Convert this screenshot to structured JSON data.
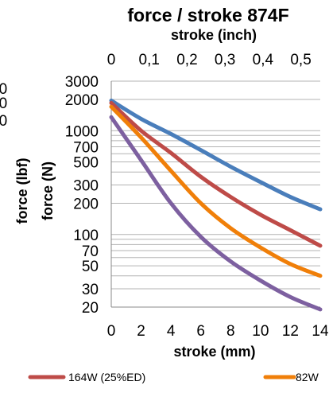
{
  "chart_data": {
    "type": "line",
    "title": "force / stroke 874F",
    "x_top_label": "stroke (inch)",
    "xlabel": "stroke (mm)",
    "ylabel_outer": "force (lbf)",
    "ylabel_inner": "force (N)",
    "x_ticks": [
      "0",
      "2",
      "4",
      "6",
      "8",
      "10",
      "12",
      "14"
    ],
    "x_top_ticks": [
      "0",
      "0,1",
      "0,2",
      "0,3",
      "0,4",
      "0,5"
    ],
    "y_ticks": [
      "20",
      "30",
      "50",
      "70",
      "100",
      "200",
      "300",
      "500",
      "700",
      "1000",
      "2000",
      "3000"
    ],
    "y_scale": "log",
    "ylim": [
      20,
      3000
    ],
    "xlim": [
      0,
      14
    ],
    "grid": true,
    "legend_position": "bottom",
    "series": [
      {
        "name": "",
        "color": "#4a7ebb",
        "x": [
          0,
          2,
          4,
          6,
          8,
          10,
          12,
          14
        ],
        "y": [
          1950,
          1300,
          930,
          650,
          450,
          320,
          230,
          175
        ]
      },
      {
        "name": "164W (25%ED)",
        "color": "#be4b48",
        "x": [
          0,
          2,
          4,
          6,
          8,
          10,
          12,
          14
        ],
        "y": [
          1850,
          1000,
          610,
          360,
          230,
          155,
          110,
          78
        ]
      },
      {
        "name": "82W",
        "color": "#f07f09",
        "x": [
          0,
          2,
          4,
          6,
          8,
          10,
          12,
          14
        ],
        "y": [
          1700,
          860,
          410,
          200,
          115,
          75,
          52,
          40
        ]
      },
      {
        "name": "",
        "color": "#7d60a0",
        "x": [
          0,
          2,
          4,
          6,
          8,
          10,
          12,
          14
        ],
        "y": [
          1350,
          520,
          200,
          95,
          55,
          36,
          25,
          19
        ]
      }
    ]
  }
}
